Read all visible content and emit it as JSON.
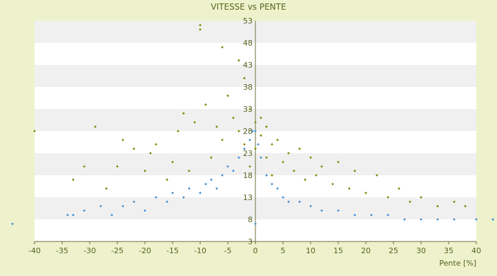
{
  "chart_data": {
    "type": "scatter",
    "title": "VITESSE vs PENTE",
    "xlabel": "Pente [%]",
    "ylabel": "",
    "xlim": [
      -40,
      40
    ],
    "ylim": [
      3,
      53
    ],
    "x_ticks": [
      "-40",
      "-35",
      "-30",
      "-25",
      "-20",
      "-15",
      "-10",
      "-5",
      "0",
      "5",
      "10",
      "15",
      "20",
      "25",
      "30",
      "35",
      "40"
    ],
    "y_ticks": [
      "3",
      "8",
      "13",
      "18",
      "23",
      "28",
      "33",
      "38",
      "43",
      "48",
      "53"
    ],
    "grid": "alternating horizontal bands",
    "legend": "none",
    "colors": {
      "series_cloud": "#7a8a00",
      "series_curves": "#3f8fd2",
      "axis": "#6b6b3a",
      "band": "#f0f0f0"
    },
    "series": [
      {
        "marker": "small diamond, olive",
        "points": [
          [
            -40,
            28
          ],
          [
            -33,
            17
          ],
          [
            -31,
            20
          ],
          [
            -29,
            29
          ],
          [
            -27,
            15
          ],
          [
            -25,
            20
          ],
          [
            -24,
            26
          ],
          [
            -22,
            24
          ],
          [
            -20,
            19
          ],
          [
            -19,
            23
          ],
          [
            -18,
            25
          ],
          [
            -16,
            17
          ],
          [
            -15,
            21
          ],
          [
            -14,
            28
          ],
          [
            -13,
            32
          ],
          [
            -12,
            19
          ],
          [
            -11,
            30
          ],
          [
            -10,
            51
          ],
          [
            -10,
            52
          ],
          [
            -9,
            34
          ],
          [
            -8,
            22
          ],
          [
            -7,
            29
          ],
          [
            -6,
            26
          ],
          [
            -6,
            47
          ],
          [
            -5,
            36
          ],
          [
            -4,
            31
          ],
          [
            -3,
            28
          ],
          [
            -3,
            44
          ],
          [
            -2,
            40
          ],
          [
            -2,
            25
          ],
          [
            -1,
            33
          ],
          [
            -1,
            20
          ],
          [
            0,
            30
          ],
          [
            0,
            24
          ],
          [
            1,
            27
          ],
          [
            1,
            31
          ],
          [
            2,
            22
          ],
          [
            2,
            29
          ],
          [
            3,
            25
          ],
          [
            3,
            18
          ],
          [
            4,
            26
          ],
          [
            5,
            21
          ],
          [
            6,
            23
          ],
          [
            7,
            19
          ],
          [
            8,
            24
          ],
          [
            9,
            17
          ],
          [
            10,
            22
          ],
          [
            11,
            18
          ],
          [
            12,
            20
          ],
          [
            14,
            16
          ],
          [
            15,
            21
          ],
          [
            17,
            15
          ],
          [
            18,
            19
          ],
          [
            20,
            14
          ],
          [
            22,
            18
          ],
          [
            24,
            13
          ],
          [
            26,
            15
          ],
          [
            28,
            12
          ],
          [
            30,
            13
          ],
          [
            33,
            11
          ],
          [
            36,
            12
          ],
          [
            38,
            11
          ]
        ]
      },
      {
        "marker": "small diamond, blue",
        "points": [
          [
            -44,
            7
          ],
          [
            -34,
            9
          ],
          [
            -33,
            9
          ],
          [
            -31,
            10
          ],
          [
            -28,
            11
          ],
          [
            -26,
            9
          ],
          [
            -24,
            11
          ],
          [
            -22,
            12
          ],
          [
            -20,
            10
          ],
          [
            -18,
            13
          ],
          [
            -16,
            12
          ],
          [
            -15,
            14
          ],
          [
            -13,
            13
          ],
          [
            -12,
            15
          ],
          [
            -10,
            14
          ],
          [
            -9,
            16
          ],
          [
            -8,
            17
          ],
          [
            -7,
            15
          ],
          [
            -6,
            18
          ],
          [
            -5,
            20
          ],
          [
            -4,
            19
          ],
          [
            -3,
            22
          ],
          [
            -2,
            24
          ],
          [
            -1,
            26
          ],
          [
            -0.5,
            28
          ],
          [
            0,
            28
          ],
          [
            0,
            7
          ],
          [
            0.5,
            25
          ],
          [
            1,
            22
          ],
          [
            2,
            18
          ],
          [
            3,
            16
          ],
          [
            4,
            15
          ],
          [
            5,
            13
          ],
          [
            6,
            12
          ],
          [
            8,
            12
          ],
          [
            10,
            11
          ],
          [
            12,
            10
          ],
          [
            15,
            10
          ],
          [
            18,
            9
          ],
          [
            21,
            9
          ],
          [
            24,
            9
          ],
          [
            27,
            8
          ],
          [
            30,
            8
          ],
          [
            33,
            8
          ],
          [
            36,
            8
          ],
          [
            40,
            8
          ],
          [
            43,
            8
          ]
        ]
      }
    ]
  }
}
